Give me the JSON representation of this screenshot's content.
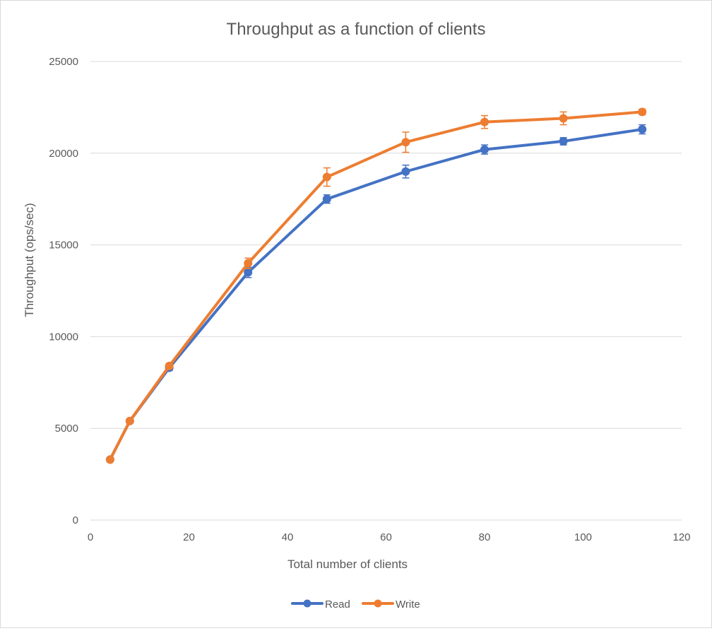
{
  "chart_data": {
    "type": "line",
    "title": "Throughput as a function of clients",
    "xlabel": "Total number of clients",
    "ylabel": "Throughput (ops/sec)",
    "xlim": [
      0,
      120
    ],
    "ylim": [
      0,
      25000
    ],
    "x_ticks": [
      "0",
      "20",
      "40",
      "60",
      "80",
      "100",
      "120"
    ],
    "y_ticks": [
      "0",
      "5000",
      "10000",
      "15000",
      "20000",
      "25000"
    ],
    "grid": "horizontal",
    "legend": "bottom",
    "x": [
      4,
      8,
      16,
      32,
      48,
      64,
      80,
      96,
      112
    ],
    "series": [
      {
        "name": "Read",
        "color": "#4472c4",
        "values": [
          3300,
          5400,
          8300,
          13500,
          17500,
          19000,
          20200,
          20650,
          21300
        ],
        "error": [
          80,
          100,
          150,
          280,
          230,
          350,
          250,
          200,
          250
        ]
      },
      {
        "name": "Write",
        "color": "#ed7d31",
        "values": [
          3300,
          5400,
          8400,
          14000,
          18700,
          20600,
          21700,
          21900,
          22250
        ],
        "error": [
          80,
          100,
          120,
          280,
          500,
          550,
          350,
          350,
          150
        ]
      }
    ]
  }
}
